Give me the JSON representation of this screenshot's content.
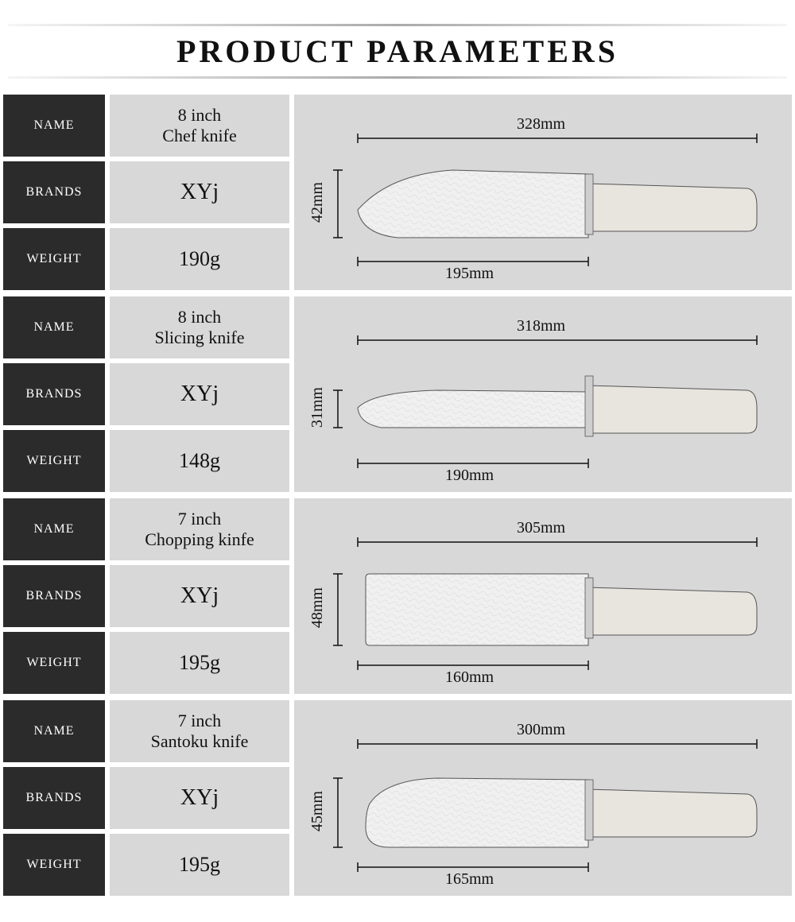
{
  "title": "PRODUCT PARAMETERS",
  "labels": {
    "name": "NAME",
    "brands": "BRANDS",
    "weight": "WEIGHT"
  },
  "colors": {
    "label_bg": "#2b2b2b",
    "label_fg": "#ffffff",
    "value_bg": "#d8d8d8",
    "value_fg": "#111111",
    "page_bg": "#ffffff",
    "knife_fill": "#f0f0f0",
    "knife_stroke": "#555555",
    "handle_fill": "#e8e4de",
    "dim_stroke": "#111111"
  },
  "products": [
    {
      "name_line1": "8 inch",
      "name_line2": "Chef knife",
      "brand": "XYj",
      "weight": "190g",
      "total_length": "328mm",
      "blade_length": "195mm",
      "blade_height": "42mm",
      "shape": "chef"
    },
    {
      "name_line1": "8 inch",
      "name_line2": "Slicing knife",
      "brand": "XYj",
      "weight": "148g",
      "total_length": "318mm",
      "blade_length": "190mm",
      "blade_height": "31mm",
      "shape": "slicing"
    },
    {
      "name_line1": "7 inch",
      "name_line2": "Chopping kinfe",
      "brand": "XYj",
      "weight": "195g",
      "total_length": "305mm",
      "blade_length": "160mm",
      "blade_height": "48mm",
      "shape": "chopping"
    },
    {
      "name_line1": "7 inch",
      "name_line2": "Santoku knife",
      "brand": "XYj",
      "weight": "195g",
      "total_length": "300mm",
      "blade_length": "165mm",
      "blade_height": "45mm",
      "shape": "santoku"
    }
  ]
}
